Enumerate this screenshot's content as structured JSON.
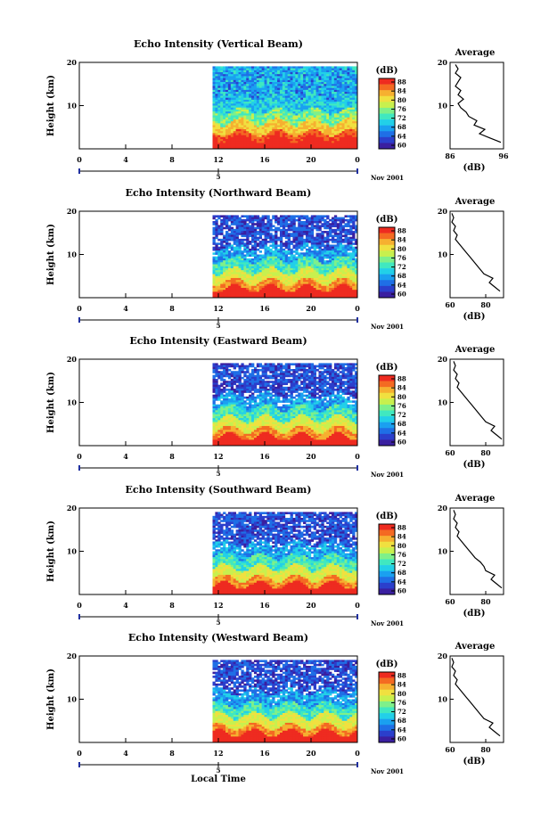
{
  "chart_data": [
    {
      "type": "heatmap",
      "title": "Echo Intensity (Vertical Beam)",
      "ylabel": "Height (km)",
      "y_ticks": [
        "20",
        "10"
      ],
      "x_ticks": [
        "0",
        "4",
        "8",
        "12",
        "16",
        "20",
        "0"
      ],
      "date_marker": "5",
      "date_label": "Nov 2001",
      "colorbar_unit": "(dB)",
      "colorbar_ticks": [
        "88",
        "84",
        "80",
        "76",
        "72",
        "68",
        "64",
        "60"
      ],
      "data_start_hour": 11.5,
      "average_profile": {
        "title": "Average",
        "y_ticks": [
          "20",
          "10"
        ],
        "x_ticks": [
          "86",
          "96"
        ],
        "xlabel": "(dB)",
        "xlim": [
          86,
          96
        ],
        "height_km": [
          1.5,
          2.5,
          3.5,
          4.5,
          5.5,
          6.5,
          7.5,
          8.5,
          9.5,
          10.5,
          11.5,
          12.5,
          13.5,
          14.5,
          15.5,
          16.5,
          17.5,
          18.5,
          19.5
        ],
        "values": [
          95.5,
          93.5,
          91.5,
          92.5,
          90.5,
          91.0,
          89.5,
          89.0,
          88.0,
          87.5,
          88.5,
          87.5,
          88.0,
          87.0,
          87.5,
          88.0,
          87.0,
          87.5,
          87.0
        ]
      }
    },
    {
      "type": "heatmap",
      "title": "Echo Intensity (Northward Beam)",
      "ylabel": "Height (km)",
      "y_ticks": [
        "20",
        "10"
      ],
      "x_ticks": [
        "0",
        "4",
        "8",
        "12",
        "16",
        "20",
        "0"
      ],
      "date_marker": "5",
      "date_label": "Nov 2001",
      "colorbar_unit": "(dB)",
      "colorbar_ticks": [
        "88",
        "84",
        "80",
        "76",
        "72",
        "68",
        "64",
        "60"
      ],
      "data_start_hour": 11.5,
      "average_profile": {
        "title": "Average",
        "y_ticks": [
          "20",
          "10"
        ],
        "x_ticks": [
          "60",
          "80"
        ],
        "xlabel": "(dB)",
        "xlim": [
          60,
          90
        ],
        "height_km": [
          1.5,
          2.5,
          3.5,
          4.5,
          5.5,
          6.5,
          7.5,
          8.5,
          9.5,
          10.5,
          11.5,
          12.5,
          13.5,
          14.5,
          15.5,
          16.5,
          17.5,
          18.5,
          19.5
        ],
        "values": [
          88,
          85,
          82,
          84,
          79,
          77,
          75,
          73,
          71,
          69,
          67,
          65,
          63,
          64,
          62,
          63,
          61,
          62,
          61
        ]
      }
    },
    {
      "type": "heatmap",
      "title": "Echo Intensity (Eastward Beam)",
      "ylabel": "Height (km)",
      "y_ticks": [
        "20",
        "10"
      ],
      "x_ticks": [
        "0",
        "4",
        "8",
        "12",
        "16",
        "20",
        "0"
      ],
      "date_marker": "5",
      "date_label": "Nov 2001",
      "colorbar_unit": "(dB)",
      "colorbar_ticks": [
        "88",
        "84",
        "80",
        "76",
        "72",
        "68",
        "64",
        "60"
      ],
      "data_start_hour": 11.5,
      "average_profile": {
        "title": "Average",
        "y_ticks": [
          "20",
          "10"
        ],
        "x_ticks": [
          "60",
          "80"
        ],
        "xlabel": "(dB)",
        "xlim": [
          60,
          90
        ],
        "height_km": [
          1.5,
          2.5,
          3.5,
          4.5,
          5.5,
          6.5,
          7.5,
          8.5,
          9.5,
          10.5,
          11.5,
          12.5,
          13.5,
          14.5,
          15.5,
          16.5,
          17.5,
          18.5,
          19.5
        ],
        "values": [
          89,
          86,
          83,
          85,
          80,
          78,
          76,
          74,
          72,
          70,
          68,
          66,
          64,
          65,
          63,
          64,
          62,
          63,
          62
        ]
      }
    },
    {
      "type": "heatmap",
      "title": "Echo Intensity (Southward Beam)",
      "ylabel": "Height (km)",
      "y_ticks": [
        "20",
        "10"
      ],
      "x_ticks": [
        "0",
        "4",
        "8",
        "12",
        "16",
        "20",
        "0"
      ],
      "date_marker": "5",
      "date_label": "Nov 2001",
      "colorbar_unit": "(dB)",
      "colorbar_ticks": [
        "88",
        "84",
        "80",
        "76",
        "72",
        "68",
        "64",
        "60"
      ],
      "data_start_hour": 11.5,
      "average_profile": {
        "title": "Average",
        "y_ticks": [
          "20",
          "10"
        ],
        "x_ticks": [
          "60",
          "80"
        ],
        "xlabel": "(dB)",
        "xlim": [
          60,
          90
        ],
        "height_km": [
          1.5,
          2.5,
          3.5,
          4.5,
          5.5,
          6.5,
          7.5,
          8.5,
          9.5,
          10.5,
          11.5,
          12.5,
          13.5,
          14.5,
          15.5,
          16.5,
          17.5,
          18.5,
          19.5
        ],
        "values": [
          89,
          86,
          83,
          85,
          80,
          79,
          77,
          74,
          72,
          70,
          68,
          66,
          64,
          65,
          63,
          64,
          62,
          63,
          62
        ]
      }
    },
    {
      "type": "heatmap",
      "title": "Echo Intensity (Westward Beam)",
      "ylabel": "Height (km)",
      "y_ticks": [
        "20",
        "10"
      ],
      "x_ticks": [
        "0",
        "4",
        "8",
        "12",
        "16",
        "20",
        "0"
      ],
      "date_marker": "5",
      "date_label": "Nov 2001",
      "colorbar_unit": "(dB)",
      "colorbar_ticks": [
        "88",
        "84",
        "80",
        "76",
        "72",
        "68",
        "64",
        "60"
      ],
      "data_start_hour": 11.5,
      "xlabel": "Local Time",
      "average_profile": {
        "title": "Average",
        "y_ticks": [
          "20",
          "10"
        ],
        "x_ticks": [
          "60",
          "80"
        ],
        "xlabel": "(dB)",
        "xlim": [
          60,
          90
        ],
        "height_km": [
          1.5,
          2.5,
          3.5,
          4.5,
          5.5,
          6.5,
          7.5,
          8.5,
          9.5,
          10.5,
          11.5,
          12.5,
          13.5,
          14.5,
          15.5,
          16.5,
          17.5,
          18.5,
          19.5
        ],
        "values": [
          88,
          85,
          82,
          84,
          79,
          77,
          75,
          73,
          71,
          69,
          67,
          65,
          63,
          64,
          62,
          63,
          61,
          62,
          61
        ]
      }
    }
  ]
}
